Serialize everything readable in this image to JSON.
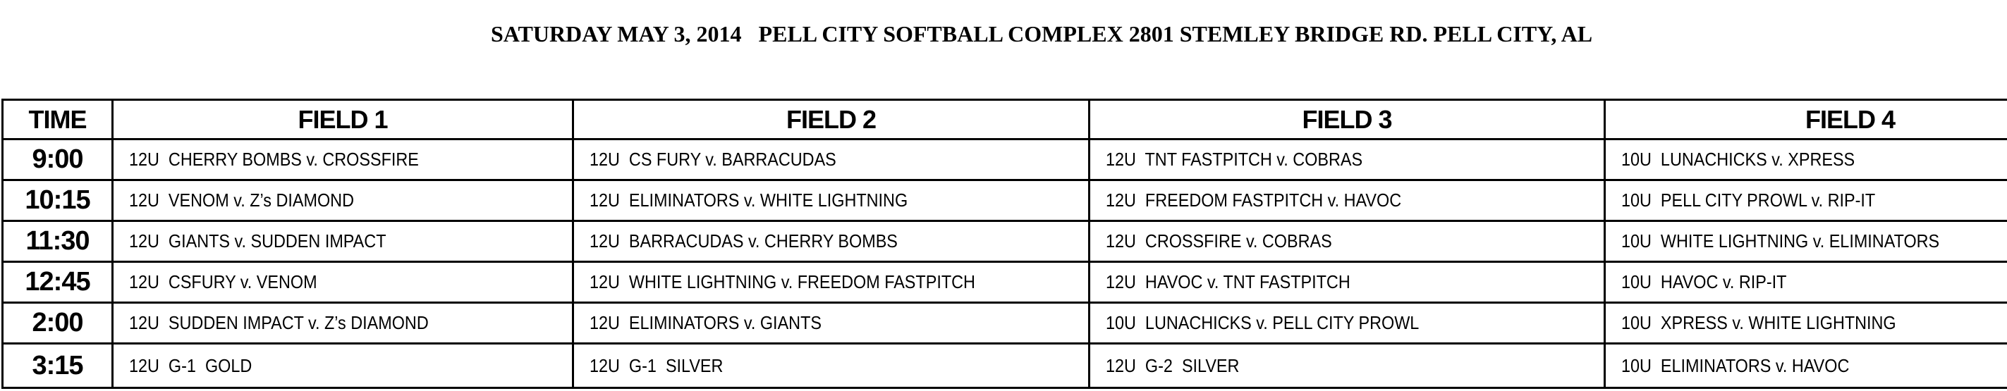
{
  "title": "SATURDAY MAY 3, 2014   PELL CITY SOFTBALL COMPLEX 2801 STEMLEY BRIDGE RD. PELL CITY, AL",
  "headers": [
    "TIME",
    "FIELD 1",
    "FIELD 2",
    "FIELD 3",
    "FIELD 4"
  ],
  "rows": [
    {
      "time": "9:00",
      "games": [
        "12U  CHERRY BOMBS v. CROSSFIRE",
        "12U  CS FURY v. BARRACUDAS",
        "12U  TNT FASTPITCH v. COBRAS",
        "10U  LUNACHICKS v. XPRESS"
      ]
    },
    {
      "time": "10:15",
      "games": [
        "12U  VENOM v. Z’s DIAMOND",
        "12U  ELIMINATORS v. WHITE LIGHTNING",
        "12U  FREEDOM FASTPITCH v. HAVOC",
        "10U  PELL CITY PROWL v. RIP-IT"
      ]
    },
    {
      "time": "11:30",
      "games": [
        "12U  GIANTS v. SUDDEN IMPACT",
        "12U  BARRACUDAS v. CHERRY BOMBS",
        "12U  CROSSFIRE v. COBRAS",
        "10U  WHITE LIGHTNING v. ELIMINATORS"
      ]
    },
    {
      "time": "12:45",
      "games": [
        "12U  CSFURY v. VENOM",
        "12U  WHITE LIGHTNING v. FREEDOM FASTPITCH",
        "12U  HAVOC v. TNT FASTPITCH",
        "10U  HAVOC v. RIP-IT"
      ]
    },
    {
      "time": "2:00",
      "games": [
        "12U  SUDDEN IMPACT v. Z’s DIAMOND",
        "12U  ELIMINATORS v. GIANTS",
        "10U  LUNACHICKS v. PELL CITY PROWL",
        "10U  XPRESS v. WHITE LIGHTNING"
      ]
    },
    {
      "time": "3:15",
      "games": [
        "12U  G-1  GOLD",
        "12U  G-1  SILVER",
        "12U  G-2  SILVER",
        "10U  ELIMINATORS v. HAVOC"
      ]
    }
  ]
}
